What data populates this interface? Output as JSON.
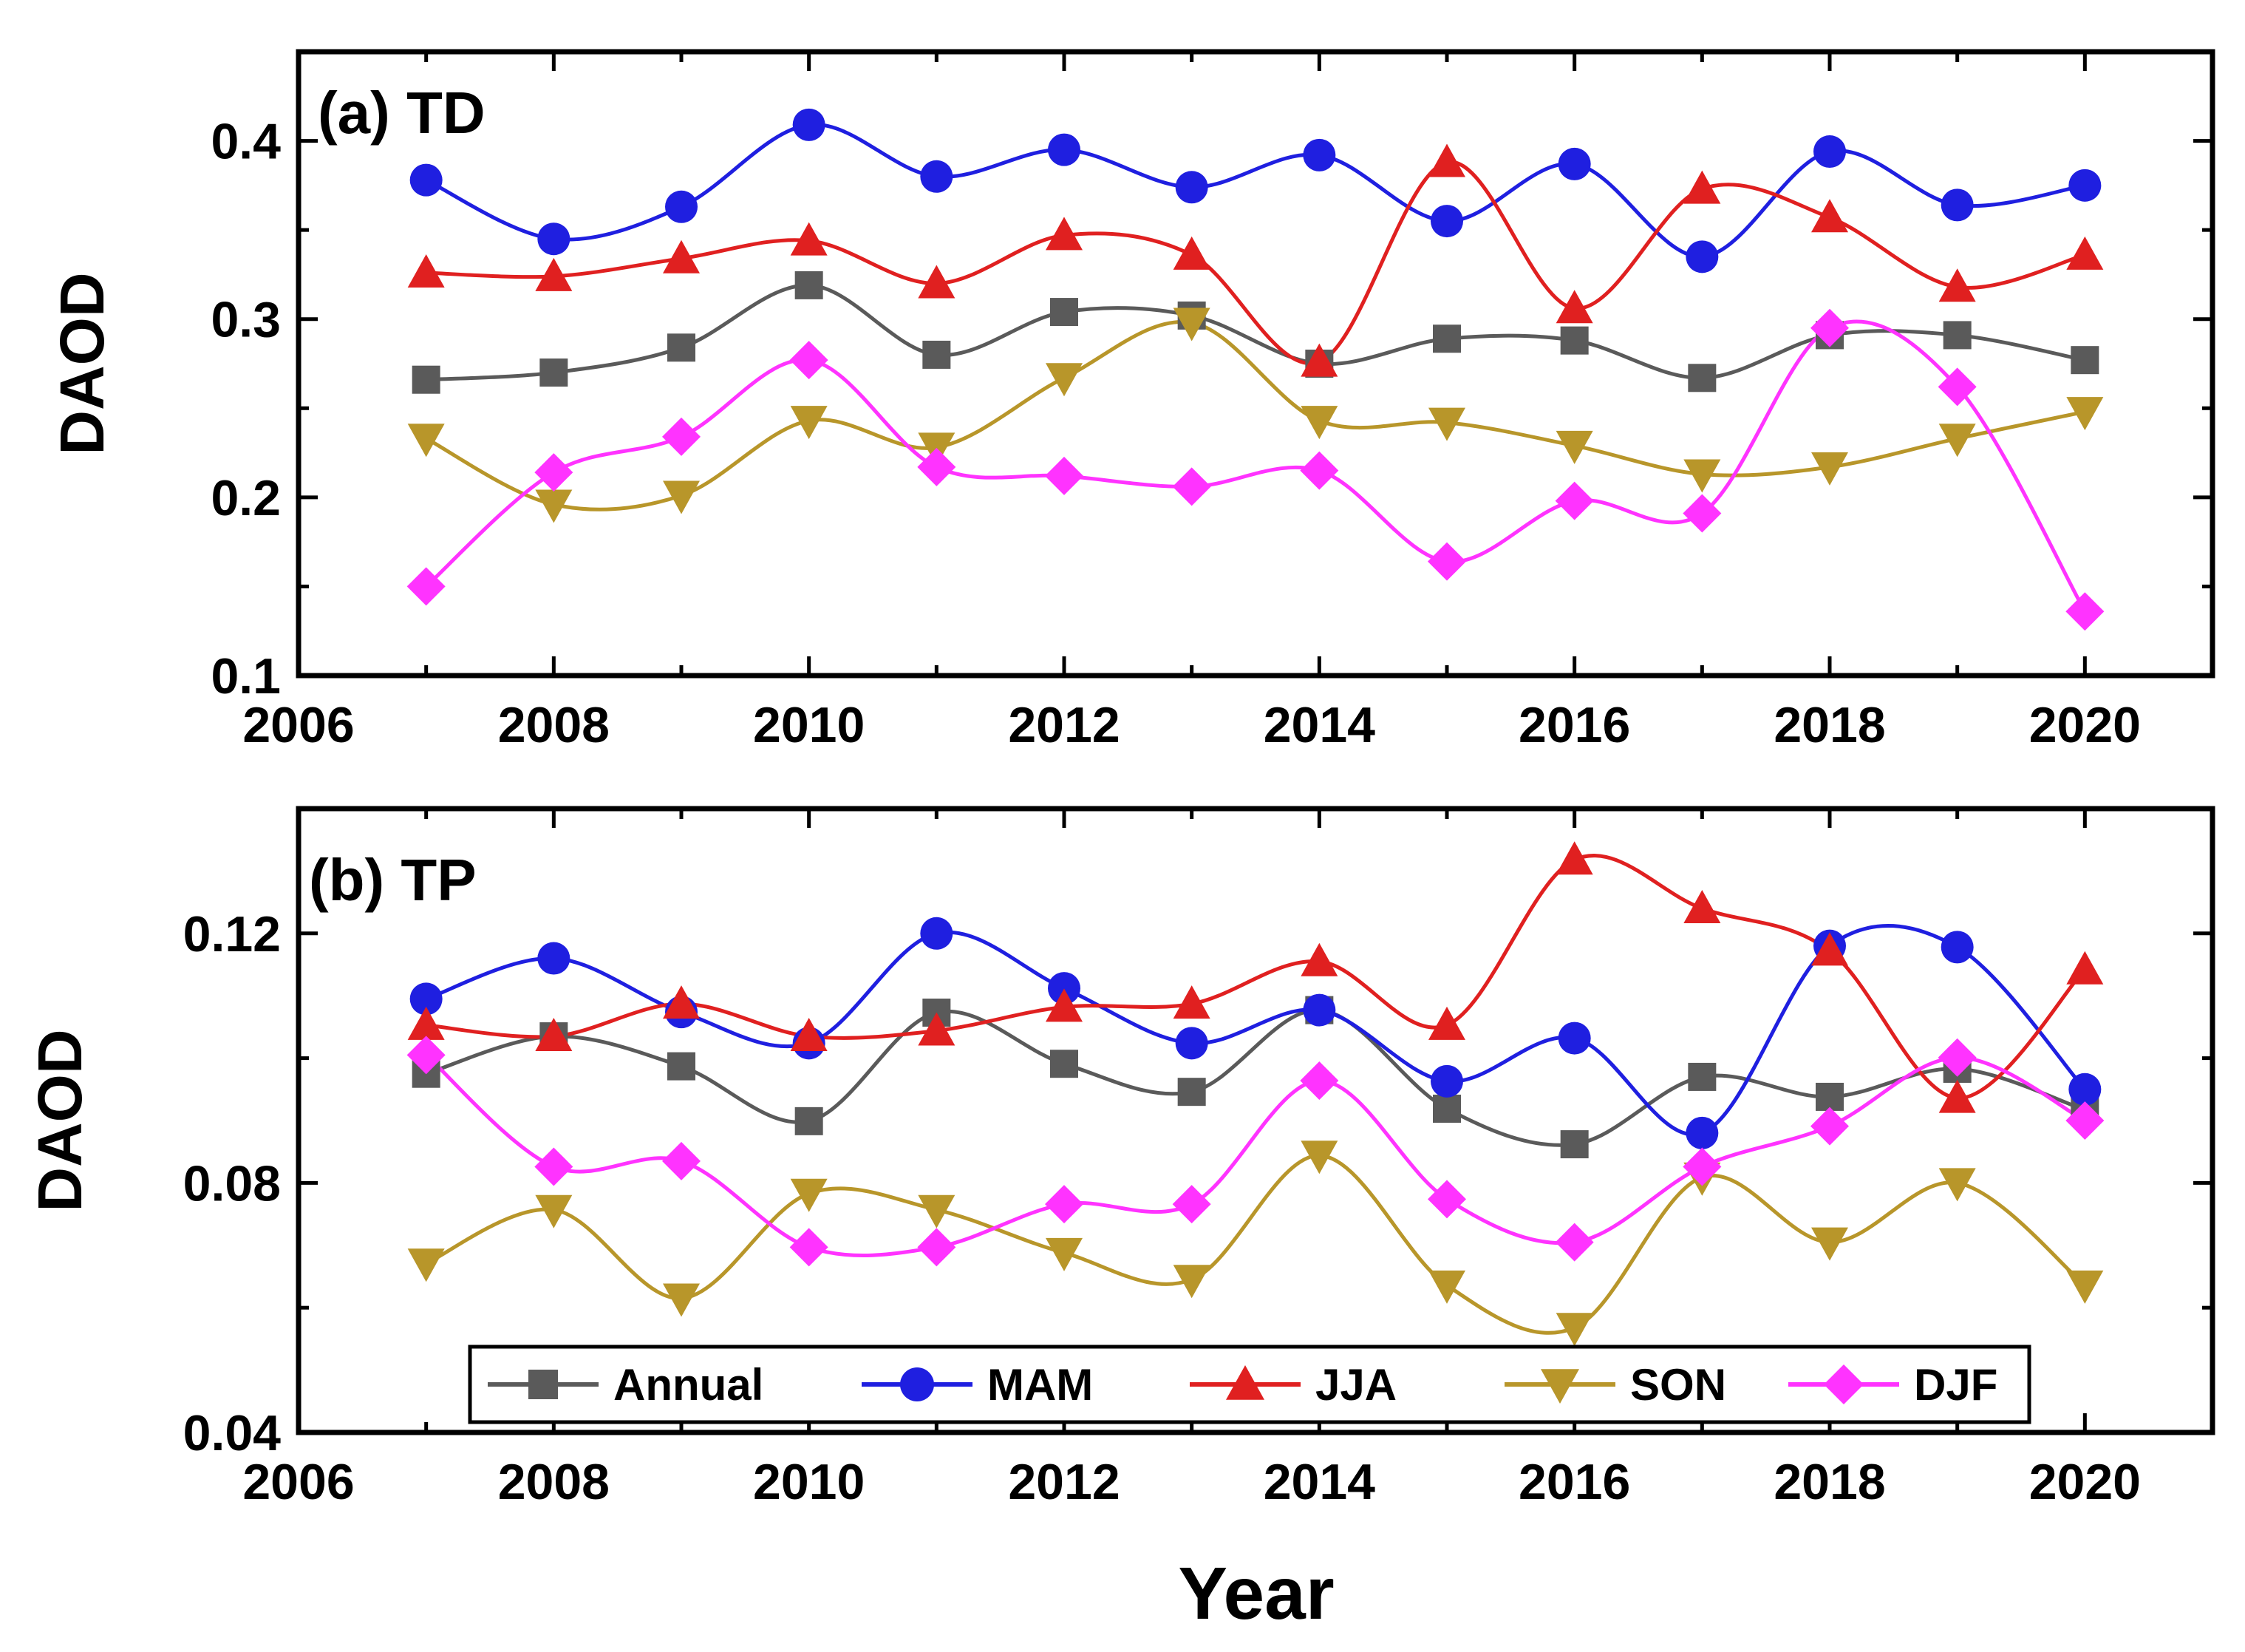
{
  "chart_data": [
    {
      "type": "line",
      "panel_label": "(a) TD",
      "xlabel": "",
      "ylabel": "DAOD",
      "xlim": [
        2006,
        2021
      ],
      "ylim": [
        0.1,
        0.45
      ],
      "xticks": [
        2006,
        2008,
        2010,
        2012,
        2014,
        2016,
        2018,
        2020
      ],
      "xtick_labels": [
        "2006",
        "2008",
        "2010",
        "2012",
        "2014",
        "2016",
        "2018",
        "2020"
      ],
      "yticks": [
        0.1,
        0.2,
        0.3,
        0.4
      ],
      "ytick_labels": [
        "0.1",
        "0.2",
        "0.3",
        "0.4"
      ],
      "x": [
        2007,
        2008,
        2009,
        2010,
        2011,
        2012,
        2013,
        2014,
        2015,
        2016,
        2017,
        2018,
        2019,
        2020
      ],
      "series": [
        {
          "name": "Annual",
          "color": "#5a5a5a",
          "marker": "square",
          "values": [
            0.266,
            0.27,
            0.284,
            0.319,
            0.28,
            0.304,
            0.302,
            0.275,
            0.289,
            0.288,
            0.267,
            0.291,
            0.291,
            0.277
          ]
        },
        {
          "name": "MAM",
          "color": "#1f1fe0",
          "marker": "circle",
          "values": [
            0.378,
            0.345,
            0.363,
            0.409,
            0.38,
            0.395,
            0.374,
            0.392,
            0.355,
            0.387,
            0.335,
            0.394,
            0.364,
            0.375
          ]
        },
        {
          "name": "JJA",
          "color": "#e02020",
          "marker": "triangle-up",
          "values": [
            0.326,
            0.324,
            0.334,
            0.344,
            0.32,
            0.347,
            0.336,
            0.276,
            0.388,
            0.306,
            0.373,
            0.357,
            0.318,
            0.336
          ]
        },
        {
          "name": "SON",
          "color": "#b8962a",
          "marker": "triangle-down",
          "values": [
            0.233,
            0.196,
            0.201,
            0.243,
            0.228,
            0.267,
            0.298,
            0.243,
            0.242,
            0.229,
            0.213,
            0.217,
            0.233,
            0.248
          ]
        },
        {
          "name": "DJF",
          "color": "#ff33ff",
          "marker": "diamond",
          "values": [
            0.15,
            0.214,
            0.234,
            0.277,
            0.217,
            0.212,
            0.206,
            0.215,
            0.164,
            0.198,
            0.191,
            0.295,
            0.262,
            0.136
          ]
        }
      ]
    },
    {
      "type": "line",
      "panel_label": "(b) TP",
      "xlabel": "Year",
      "ylabel": "DAOD",
      "xlim": [
        2006,
        2021
      ],
      "ylim": [
        0.04,
        0.14
      ],
      "xticks": [
        2006,
        2008,
        2010,
        2012,
        2014,
        2016,
        2018,
        2020
      ],
      "xtick_labels": [
        "2006",
        "2008",
        "2010",
        "2012",
        "2014",
        "2016",
        "2018",
        "2020"
      ],
      "yticks": [
        0.04,
        0.08,
        0.12
      ],
      "ytick_labels": [
        "0.04",
        "0.08",
        "0.12"
      ],
      "x": [
        2007,
        2008,
        2009,
        2010,
        2011,
        2012,
        2013,
        2014,
        2015,
        2016,
        2017,
        2018,
        2019,
        2020
      ],
      "series": [
        {
          "name": "Annual",
          "color": "#5a5a5a",
          "marker": "square",
          "values": [
            0.0975,
            0.1035,
            0.0987,
            0.0899,
            0.1073,
            0.0991,
            0.0946,
            0.1077,
            0.0919,
            0.0862,
            0.097,
            0.0938,
            0.0983,
            0.0917
          ]
        },
        {
          "name": "MAM",
          "color": "#1f1fe0",
          "marker": "circle",
          "values": [
            0.1095,
            0.116,
            0.1074,
            0.1024,
            0.12,
            0.1112,
            0.1024,
            0.1077,
            0.0963,
            0.1032,
            0.088,
            0.118,
            0.1178,
            0.095
          ]
        },
        {
          "name": "JJA",
          "color": "#e02020",
          "marker": "triangle-up",
          "values": [
            0.1053,
            0.1035,
            0.1087,
            0.1035,
            0.1044,
            0.1082,
            0.1087,
            0.1155,
            0.1053,
            0.1318,
            0.124,
            0.1172,
            0.0936,
            0.1142
          ]
        },
        {
          "name": "SON",
          "color": "#b8962a",
          "marker": "triangle-down",
          "values": [
            0.0671,
            0.0757,
            0.0615,
            0.0783,
            0.0757,
            0.0688,
            0.0645,
            0.0844,
            0.0636,
            0.0568,
            0.0809,
            0.0705,
            0.08,
            0.0636
          ]
        },
        {
          "name": "DJF",
          "color": "#ff33ff",
          "marker": "diamond",
          "values": [
            0.1005,
            0.0826,
            0.0835,
            0.0697,
            0.0697,
            0.0766,
            0.0766,
            0.0964,
            0.0774,
            0.0705,
            0.0826,
            0.0891,
            0.1001,
            0.09
          ]
        }
      ]
    }
  ],
  "legend": {
    "placement": "bottom",
    "entries": [
      "Annual",
      "MAM",
      "JJA",
      "SON",
      "DJF"
    ]
  }
}
